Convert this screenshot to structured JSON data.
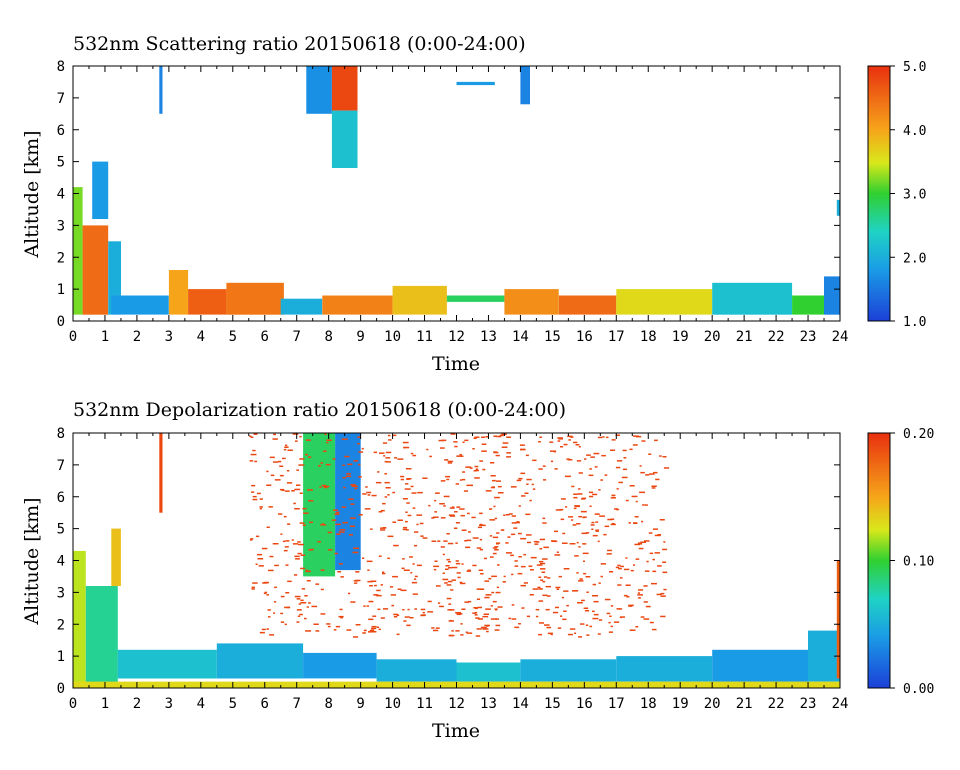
{
  "chart_data": [
    {
      "type": "heatmap",
      "title": "532nm Scattering ratio  20150618 (0:00-24:00)",
      "xlabel": "Time",
      "ylabel": "Altitude [km]",
      "xlim": [
        0,
        24
      ],
      "ylim": [
        0,
        8
      ],
      "x_ticks": [
        "0",
        "1",
        "2",
        "3",
        "4",
        "5",
        "6",
        "7",
        "8",
        "9",
        "10",
        "11",
        "12",
        "13",
        "14",
        "15",
        "16",
        "17",
        "18",
        "19",
        "20",
        "21",
        "22",
        "23",
        "24"
      ],
      "y_ticks": [
        "0",
        "1",
        "2",
        "3",
        "4",
        "5",
        "6",
        "7",
        "8"
      ],
      "colorbar": {
        "min": 1.0,
        "max": 5.0,
        "ticks": [
          "1.0",
          "2.0",
          "3.0",
          "4.0",
          "5.0"
        ]
      },
      "features": [
        {
          "t0": 0.0,
          "t1": 0.3,
          "z0": 0.2,
          "z1": 4.2,
          "v": 3.2
        },
        {
          "t0": 0.3,
          "t1": 1.1,
          "z0": 0.2,
          "z1": 3.0,
          "v": 4.5
        },
        {
          "t0": 0.6,
          "t1": 1.1,
          "z0": 3.2,
          "z1": 5.0,
          "v": 1.8
        },
        {
          "t0": 1.1,
          "t1": 1.5,
          "z0": 0.2,
          "z1": 2.5,
          "v": 2.0
        },
        {
          "t0": 1.2,
          "t1": 3.0,
          "z0": 0.2,
          "z1": 0.8,
          "v": 1.8
        },
        {
          "t0": 2.7,
          "t1": 2.8,
          "z0": 6.5,
          "z1": 8.0,
          "v": 1.6
        },
        {
          "t0": 3.0,
          "t1": 3.6,
          "z0": 0.2,
          "z1": 1.6,
          "v": 4.0
        },
        {
          "t0": 3.6,
          "t1": 4.8,
          "z0": 0.2,
          "z1": 1.0,
          "v": 4.6
        },
        {
          "t0": 4.8,
          "t1": 6.6,
          "z0": 0.2,
          "z1": 1.2,
          "v": 4.4
        },
        {
          "t0": 6.5,
          "t1": 7.8,
          "z0": 0.2,
          "z1": 0.7,
          "v": 2.0
        },
        {
          "t0": 7.3,
          "t1": 8.1,
          "z0": 6.5,
          "z1": 8.0,
          "v": 1.7
        },
        {
          "t0": 8.1,
          "t1": 8.9,
          "z0": 6.6,
          "z1": 8.0,
          "v": 4.8
        },
        {
          "t0": 8.1,
          "t1": 8.9,
          "z0": 4.8,
          "z1": 6.6,
          "v": 2.2
        },
        {
          "t0": 7.8,
          "t1": 10.0,
          "z0": 0.2,
          "z1": 0.8,
          "v": 4.3
        },
        {
          "t0": 10.0,
          "t1": 11.7,
          "z0": 0.2,
          "z1": 1.1,
          "v": 3.8
        },
        {
          "t0": 11.7,
          "t1": 13.5,
          "z0": 0.6,
          "z1": 0.8,
          "v": 2.8
        },
        {
          "t0": 13.5,
          "t1": 15.2,
          "z0": 0.2,
          "z1": 1.0,
          "v": 4.2
        },
        {
          "t0": 15.2,
          "t1": 17.0,
          "z0": 0.2,
          "z1": 0.8,
          "v": 4.5
        },
        {
          "t0": 17.0,
          "t1": 20.0,
          "z0": 0.2,
          "z1": 1.0,
          "v": 3.6
        },
        {
          "t0": 20.0,
          "t1": 22.5,
          "z0": 0.2,
          "z1": 1.2,
          "v": 2.2
        },
        {
          "t0": 22.5,
          "t1": 23.5,
          "z0": 0.2,
          "z1": 0.8,
          "v": 3.0
        },
        {
          "t0": 23.5,
          "t1": 24.0,
          "z0": 0.2,
          "z1": 1.4,
          "v": 1.6
        },
        {
          "t0": 12.0,
          "t1": 13.2,
          "z0": 7.4,
          "z1": 7.5,
          "v": 1.8
        },
        {
          "t0": 14.0,
          "t1": 14.3,
          "z0": 6.8,
          "z1": 8.0,
          "v": 1.6
        },
        {
          "t0": 23.9,
          "t1": 24.0,
          "z0": 3.3,
          "z1": 3.8,
          "v": 2.0
        }
      ]
    },
    {
      "type": "heatmap",
      "title": "532nm Depolarization ratio  20150618 (0:00-24:00)",
      "xlabel": "Time",
      "ylabel": "Altitude [km]",
      "xlim": [
        0,
        24
      ],
      "ylim": [
        0,
        8
      ],
      "x_ticks": [
        "0",
        "1",
        "2",
        "3",
        "4",
        "5",
        "6",
        "7",
        "8",
        "9",
        "10",
        "11",
        "12",
        "13",
        "14",
        "15",
        "16",
        "17",
        "18",
        "19",
        "20",
        "21",
        "22",
        "23",
        "24"
      ],
      "y_ticks": [
        "0",
        "1",
        "2",
        "3",
        "4",
        "5",
        "6",
        "7",
        "8"
      ],
      "colorbar": {
        "min": 0.0,
        "max": 0.2,
        "ticks": [
          "0.00",
          "0.10",
          "0.20"
        ]
      },
      "features": [
        {
          "t0": 0.0,
          "t1": 0.4,
          "z0": 0.0,
          "z1": 4.3,
          "v": 0.12
        },
        {
          "t0": 0.4,
          "t1": 1.4,
          "z0": 0.0,
          "z1": 3.2,
          "v": 0.08
        },
        {
          "t0": 1.2,
          "t1": 1.5,
          "z0": 3.2,
          "z1": 5.0,
          "v": 0.14
        },
        {
          "t0": 1.4,
          "t1": 4.5,
          "z0": 0.3,
          "z1": 1.2,
          "v": 0.06
        },
        {
          "t0": 4.5,
          "t1": 7.2,
          "z0": 0.3,
          "z1": 1.4,
          "v": 0.05
        },
        {
          "t0": 7.2,
          "t1": 8.2,
          "z0": 3.5,
          "z1": 8.0,
          "v": 0.09
        },
        {
          "t0": 8.2,
          "t1": 9.0,
          "z0": 3.7,
          "z1": 8.0,
          "v": 0.03
        },
        {
          "t0": 7.2,
          "t1": 9.5,
          "z0": 0.3,
          "z1": 1.1,
          "v": 0.04
        },
        {
          "t0": 9.5,
          "t1": 12.0,
          "z0": 0.2,
          "z1": 0.9,
          "v": 0.05
        },
        {
          "t0": 12.0,
          "t1": 14.0,
          "z0": 0.2,
          "z1": 0.8,
          "v": 0.06
        },
        {
          "t0": 14.0,
          "t1": 17.0,
          "z0": 0.2,
          "z1": 0.9,
          "v": 0.05
        },
        {
          "t0": 17.0,
          "t1": 20.0,
          "z0": 0.2,
          "z1": 1.0,
          "v": 0.05
        },
        {
          "t0": 20.0,
          "t1": 23.0,
          "z0": 0.2,
          "z1": 1.2,
          "v": 0.04
        },
        {
          "t0": 23.0,
          "t1": 24.0,
          "z0": 0.2,
          "z1": 1.8,
          "v": 0.05
        },
        {
          "t0": 0.0,
          "t1": 24.0,
          "z0": 0.0,
          "z1": 0.2,
          "v": 0.13
        },
        {
          "t0": 2.7,
          "t1": 2.8,
          "z0": 5.5,
          "z1": 8.0,
          "v": 0.19
        },
        {
          "t0": 23.9,
          "t1": 24.0,
          "z0": 0.3,
          "z1": 4.0,
          "v": 0.18
        }
      ],
      "speckle": [
        {
          "t0": 5.5,
          "t1": 18.5,
          "z0": 1.6,
          "z1": 8.0,
          "v": 0.19,
          "density": 0.06
        },
        {
          "t0": 11.5,
          "t1": 13.3,
          "z0": 1.6,
          "z1": 8.0,
          "v": 0.19,
          "density": 0.04
        }
      ]
    }
  ]
}
